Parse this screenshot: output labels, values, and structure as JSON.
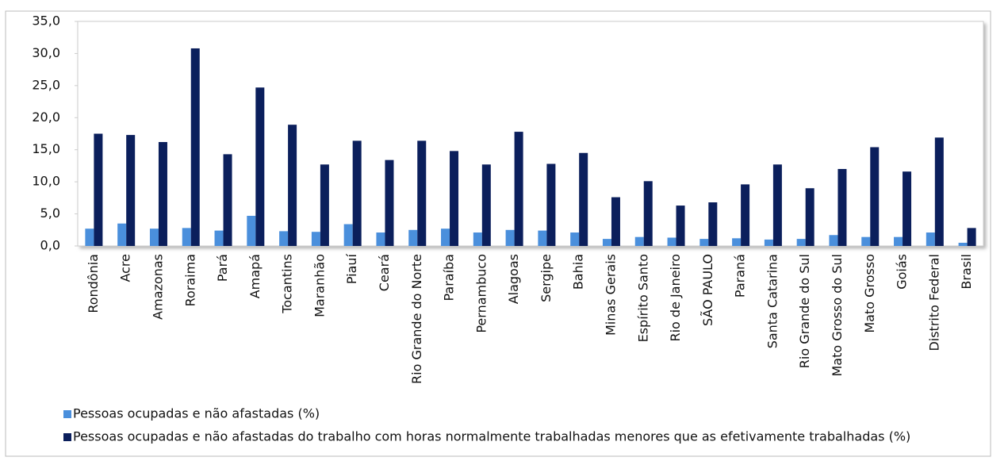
{
  "chart_data": {
    "type": "bar",
    "categories": [
      "Rondônia",
      "Acre",
      "Amazonas",
      "Roraima",
      "Pará",
      "Amapá",
      "Tocantins",
      "Maranhão",
      "Piauí",
      "Ceará",
      "Rio Grande do Norte",
      "Paraíba",
      "Pernambuco",
      "Alagoas",
      "Sergipe",
      "Bahia",
      "Minas Gerais",
      "Espírito Santo",
      "Rio de Janeiro",
      "SÃO PAULO",
      "Paraná",
      "Santa Catarina",
      "Rio Grande do Sul",
      "Mato Grosso do Sul",
      "Mato Grosso",
      "Goiás",
      "Distrito Federal",
      "Brasil"
    ],
    "series": [
      {
        "name": "Pessoas ocupadas e não afastadas (%)",
        "color": "#4a8fdc",
        "values": [
          2.7,
          3.5,
          2.7,
          2.8,
          2.4,
          4.7,
          2.3,
          2.2,
          3.4,
          2.1,
          2.5,
          2.7,
          2.1,
          2.5,
          2.4,
          2.1,
          1.1,
          1.4,
          1.3,
          1.1,
          1.2,
          1.0,
          1.1,
          1.7,
          1.4,
          1.4,
          2.1,
          0.5
        ]
      },
      {
        "name": "Pessoas ocupadas e não afastadas do trabalho com horas normalmente trabalhadas menores que as efetivamente trabalhadas (%)",
        "color": "#0b1f5c",
        "values": [
          17.5,
          17.3,
          16.2,
          30.8,
          14.3,
          24.7,
          18.9,
          12.7,
          16.4,
          13.4,
          16.4,
          14.8,
          12.7,
          17.8,
          12.8,
          14.5,
          7.6,
          10.1,
          6.3,
          6.8,
          9.6,
          12.7,
          9.0,
          12.0,
          15.4,
          11.6,
          16.9,
          2.8
        ]
      }
    ],
    "ylim": [
      0,
      35
    ],
    "yticks": [
      {
        "value": 0,
        "label": "0,0"
      },
      {
        "value": 5,
        "label": "5,0"
      },
      {
        "value": 10,
        "label": "10,0"
      },
      {
        "value": 15,
        "label": "15,0"
      },
      {
        "value": 20,
        "label": "20,0"
      },
      {
        "value": 25,
        "label": "25,0"
      },
      {
        "value": 30,
        "label": "30,0"
      },
      {
        "value": 35,
        "label": "35,0"
      }
    ],
    "grid": false
  }
}
